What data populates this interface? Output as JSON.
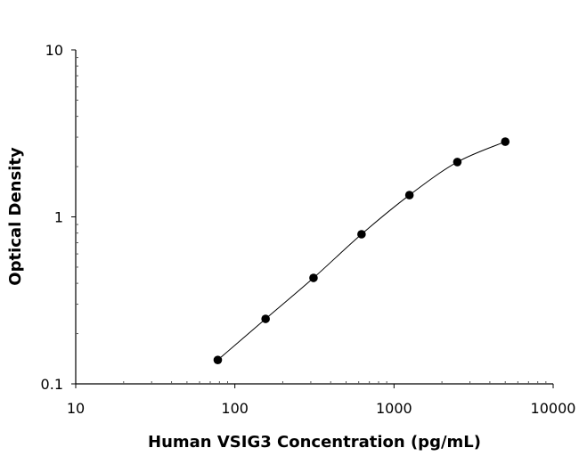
{
  "chart_data": {
    "type": "scatter",
    "title": "",
    "xlabel": "Human VSIG3 Concentration (pg/mL)",
    "ylabel": "Optical Density",
    "xscale": "log",
    "yscale": "log",
    "xlim": [
      10,
      10000
    ],
    "ylim": [
      0.1,
      10
    ],
    "xticks": [
      "10",
      "100",
      "1000",
      "10000"
    ],
    "yticks": [
      "0.1",
      "1",
      "10"
    ],
    "grid": false,
    "fit_curve": true,
    "colors": {
      "points": "#000000",
      "line": "#000000"
    },
    "series": [
      {
        "x": [
          78.1,
          156,
          312,
          625,
          1250,
          2500,
          5000
        ],
        "y": [
          0.139,
          0.245,
          0.431,
          0.787,
          1.35,
          2.13,
          2.82
        ]
      }
    ]
  }
}
